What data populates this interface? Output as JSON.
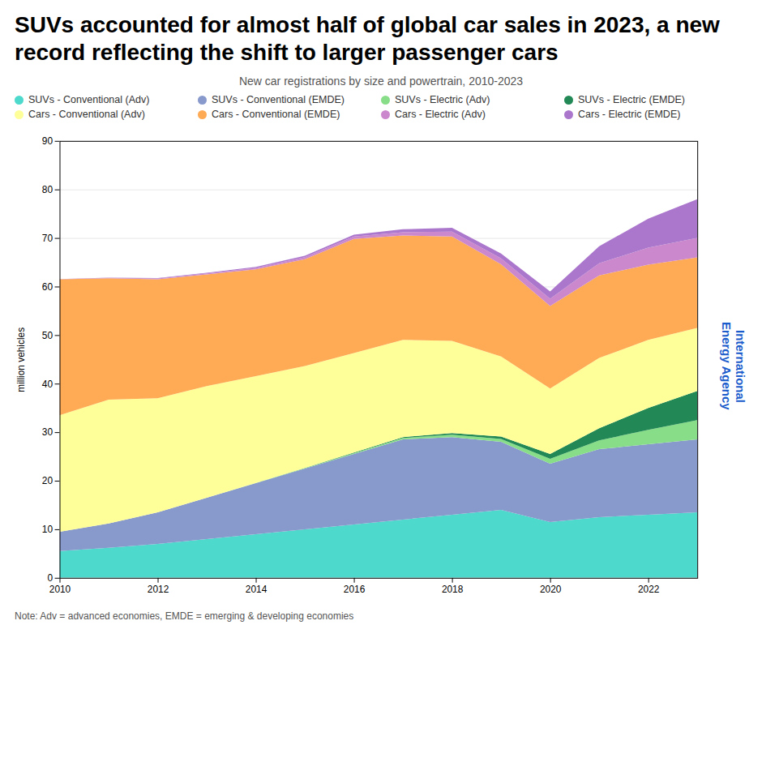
{
  "chart_data": {
    "type": "area",
    "stacked": true,
    "title": "SUVs accounted for almost half of global car sales in 2023, a new record reflecting the shift to larger passenger cars",
    "subtitle": "New car registrations by size and powertrain, 2010-2023",
    "note": "Note: Adv = advanced economies, EMDE = emerging & developing economies",
    "annotations": [
      "International\nEnergy Agency"
    ],
    "ylabel": "million vehicles",
    "x": [
      2010,
      2011,
      2012,
      2013,
      2014,
      2015,
      2016,
      2017,
      2018,
      2019,
      2020,
      2021,
      2022,
      2023
    ],
    "xlim": [
      2010,
      2023
    ],
    "xticks": [
      2010,
      2012,
      2014,
      2016,
      2018,
      2020,
      2022
    ],
    "ylim": [
      0,
      90
    ],
    "yticks": [
      0,
      10,
      20,
      30,
      40,
      50,
      60,
      70,
      80,
      90
    ],
    "grid": "y",
    "legend": "top",
    "series": [
      {
        "name": "SUVs - Conventional (Adv)",
        "color": "#4DD9CC",
        "values": [
          5.5,
          6.2,
          7.0,
          8.0,
          9.0,
          10.0,
          11.0,
          12.0,
          13.0,
          14.0,
          11.5,
          12.5,
          13.0,
          13.5
        ]
      },
      {
        "name": "SUVs - Conventional (EMDE)",
        "color": "#8899CC",
        "values": [
          4.0,
          5.0,
          6.5,
          8.5,
          10.5,
          12.5,
          14.5,
          16.5,
          16.0,
          14.0,
          12.0,
          14.0,
          14.5,
          15.0
        ]
      },
      {
        "name": "SUVs - Electric (Adv)",
        "color": "#88DD88",
        "values": [
          0.0,
          0.0,
          0.0,
          0.0,
          0.05,
          0.1,
          0.2,
          0.3,
          0.5,
          0.6,
          1.0,
          1.8,
          3.0,
          4.0
        ]
      },
      {
        "name": "SUVs - Electric (EMDE)",
        "color": "#228855",
        "values": [
          0.0,
          0.0,
          0.0,
          0.0,
          0.0,
          0.05,
          0.1,
          0.2,
          0.3,
          0.5,
          1.0,
          2.5,
          4.5,
          6.0
        ]
      },
      {
        "name": "Cars - Conventional (Adv)",
        "color": "#FFFF99",
        "values": [
          24.0,
          25.5,
          23.5,
          23.0,
          22.0,
          21.0,
          20.5,
          20.0,
          19.0,
          16.5,
          13.5,
          14.5,
          14.0,
          13.0
        ]
      },
      {
        "name": "Cars - Conventional (EMDE)",
        "color": "#FFAA55",
        "values": [
          28.0,
          25.0,
          24.5,
          23.0,
          22.0,
          22.0,
          23.5,
          21.5,
          21.5,
          19.0,
          17.0,
          17.0,
          15.5,
          14.5
        ]
      },
      {
        "name": "Cars - Electric (Adv)",
        "color": "#CC88CC",
        "values": [
          0.05,
          0.1,
          0.15,
          0.2,
          0.3,
          0.4,
          0.5,
          0.7,
          1.0,
          1.2,
          1.5,
          2.5,
          3.5,
          4.0
        ]
      },
      {
        "name": "Cars - Electric (EMDE)",
        "color": "#AA77CC",
        "values": [
          0.0,
          0.05,
          0.1,
          0.15,
          0.2,
          0.3,
          0.4,
          0.6,
          0.8,
          1.0,
          1.5,
          3.5,
          6.0,
          8.0
        ]
      }
    ]
  }
}
